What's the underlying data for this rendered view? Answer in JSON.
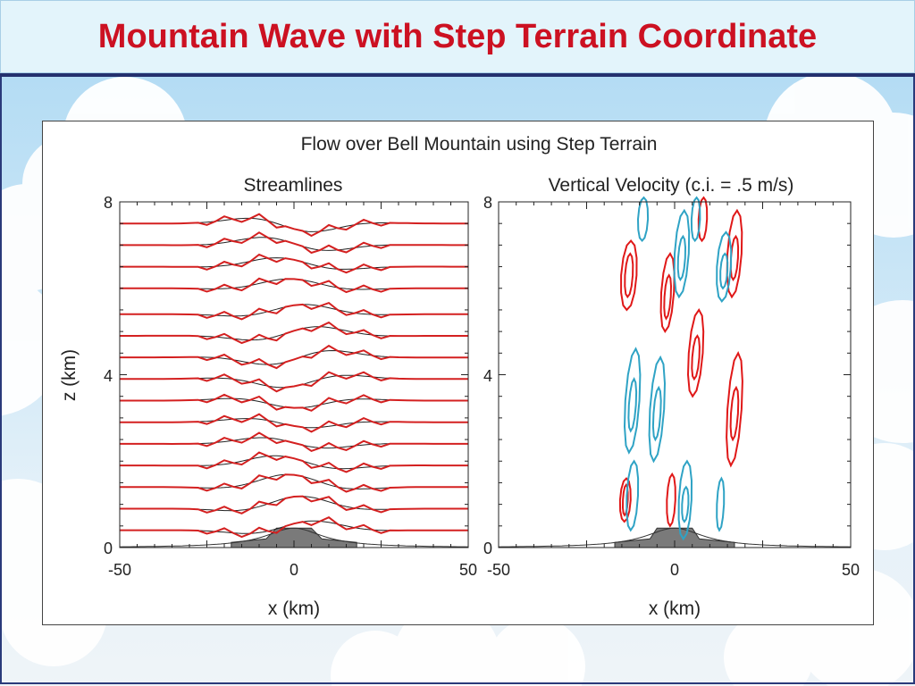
{
  "slide": {
    "title": "Mountain Wave with Step Terrain Coordinate"
  },
  "theme": {
    "title_color": "#cc1122",
    "rule_color": "#24306e",
    "streamline_color": "#d42020",
    "reference_color": "#222222",
    "updraft_color": "#e01818",
    "downdraft_color": "#2fa3c5",
    "terrain_color": "#7a7a7a"
  },
  "figure": {
    "title": "Flow over Bell Mountain using Step Terrain"
  },
  "chart_data": [
    {
      "type": "line",
      "title": "Streamlines",
      "xlabel": "x (km)",
      "ylabel": "z (km)",
      "xlim": [
        -50,
        50
      ],
      "ylim": [
        0,
        8
      ],
      "xticks": [
        "-50",
        "0",
        "50"
      ],
      "yticks": [
        "0",
        "4",
        "8"
      ],
      "streamline_levels": [
        0.4,
        0.9,
        1.4,
        1.9,
        2.4,
        2.9,
        3.4,
        3.9,
        4.4,
        4.9,
        5.4,
        6.0,
        6.5,
        7.0,
        7.5
      ],
      "series": [
        {
          "values": "model streamlines (red, stepped)"
        },
        {
          "values": "analytic reference streamlines (black)"
        }
      ],
      "terrain": {
        "shape": "bell",
        "peak_height_km": 0.45,
        "half_width_km": 10,
        "step_top_halfwidth_km": 5,
        "step_base_halfwidth_km": 18
      },
      "grid": false
    },
    {
      "type": "line",
      "title": "Vertical Velocity (c.i. = .5 m/s)",
      "xlabel": "x (km)",
      "xlim": [
        -50,
        50
      ],
      "ylim": [
        0,
        8
      ],
      "xticks": [
        "-50",
        "0",
        "50"
      ],
      "yticks": [
        "0",
        "4",
        "8"
      ],
      "series": [
        {
          "values": "updraft contours (red)"
        },
        {
          "values": "downdraft contours (blue)"
        }
      ],
      "grid": false
    }
  ]
}
